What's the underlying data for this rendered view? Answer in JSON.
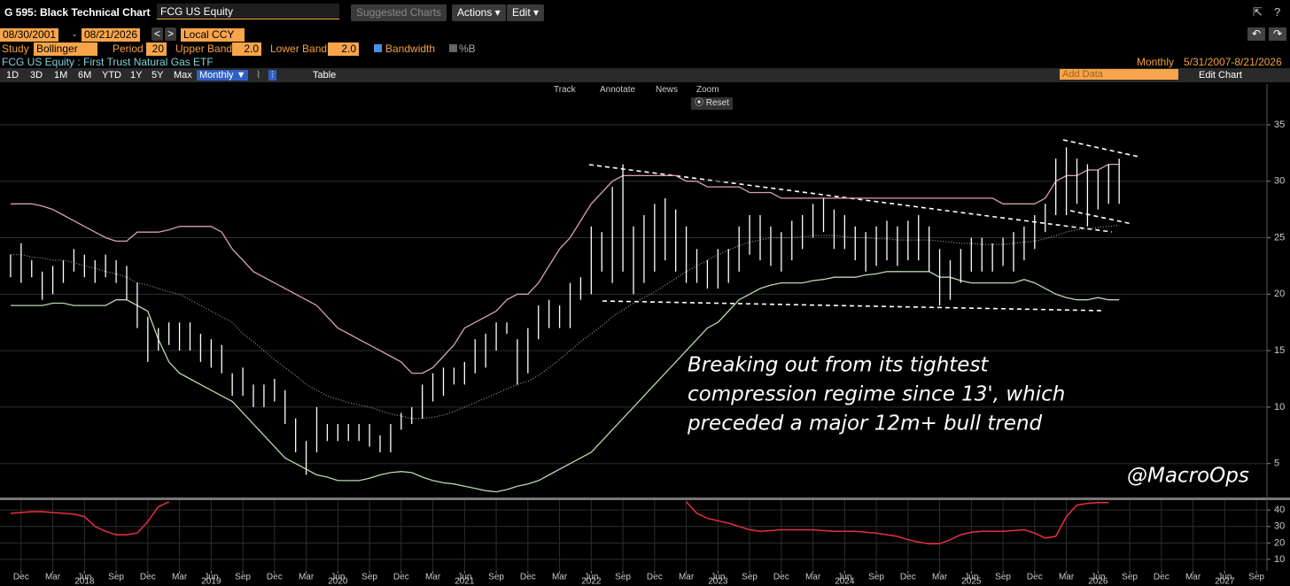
{
  "ui": {
    "window_title": "G 595: Black Technical Chart",
    "ticker_input": "FCG US Equity",
    "suggested": "Suggested Charts",
    "actions": "Actions ▾",
    "edit": "Edit ▾",
    "start_date": "08/30/2001",
    "dash": "-",
    "end_date": "08/21/2026",
    "currency": "Local CCY",
    "study_label": "Study",
    "study": "Bollinger",
    "period_label": "Period",
    "period": "20",
    "upper_label": "Upper Band",
    "upper": "2.0",
    "lower_label": "Lower Band",
    "lower": "2.0",
    "bandwidth": "Bandwidth",
    "pctb": "%B",
    "security": "FCG US Equity : First Trust Natural Gas ETF",
    "frequency": "Monthly",
    "range": "5/31/2007-8/21/2026",
    "periods": [
      "1D",
      "3D",
      "1M",
      "6M",
      "YTD",
      "1Y",
      "5Y",
      "Max"
    ],
    "freq_button": "Monthly ▼",
    "table": "Table",
    "add_data": "Add Data",
    "edit_chart": "Edit Chart",
    "tools": [
      "Track",
      "Annotate",
      "News",
      "Zoom"
    ],
    "reset": "Reset"
  },
  "chart_data": {
    "type": "ohlc",
    "x": [
      "2017-11",
      "2017-12",
      "2018-01",
      "2018-02",
      "2018-03",
      "2018-04",
      "2018-05",
      "2018-06",
      "2018-07",
      "2018-08",
      "2018-09",
      "2018-10",
      "2018-11",
      "2018-12",
      "2019-01",
      "2019-02",
      "2019-03",
      "2019-04",
      "2019-05",
      "2019-06",
      "2019-07",
      "2019-08",
      "2019-09",
      "2019-10",
      "2019-11",
      "2019-12",
      "2020-01",
      "2020-02",
      "2020-03",
      "2020-04",
      "2020-05",
      "2020-06",
      "2020-07",
      "2020-08",
      "2020-09",
      "2020-10",
      "2020-11",
      "2020-12",
      "2021-01",
      "2021-02",
      "2021-03",
      "2021-04",
      "2021-05",
      "2021-06",
      "2021-07",
      "2021-08",
      "2021-09",
      "2021-10",
      "2021-11",
      "2021-12",
      "2022-01",
      "2022-02",
      "2022-03",
      "2022-04",
      "2022-05",
      "2022-06",
      "2022-07",
      "2022-08",
      "2022-09",
      "2022-10",
      "2022-11",
      "2022-12",
      "2023-01",
      "2023-02",
      "2023-03",
      "2023-04",
      "2023-05",
      "2023-06",
      "2023-07",
      "2023-08",
      "2023-09",
      "2023-10",
      "2023-11",
      "2023-12",
      "2024-01",
      "2024-02",
      "2024-03",
      "2024-04",
      "2024-05",
      "2024-06",
      "2024-07",
      "2024-08",
      "2024-09",
      "2024-10",
      "2024-11",
      "2024-12",
      "2025-01",
      "2025-02",
      "2025-03",
      "2025-04",
      "2025-05",
      "2025-06",
      "2025-07",
      "2025-08",
      "2025-09",
      "2025-10",
      "2025-11",
      "2025-12",
      "2026-01",
      "2026-02",
      "2026-03",
      "2026-04",
      "2026-05",
      "2026-06",
      "2026-07",
      "2026-08"
    ],
    "high": [
      23.5,
      24.5,
      23,
      22,
      22.5,
      23,
      24,
      23.5,
      23,
      23.5,
      23,
      22.5,
      21,
      18,
      17,
      17.5,
      17.5,
      17.5,
      16.5,
      16,
      15.5,
      13,
      13.5,
      12,
      12,
      12.5,
      11.5,
      9,
      7,
      10,
      8.5,
      8.5,
      8.5,
      8.5,
      8.5,
      7.5,
      8.5,
      9.5,
      10,
      12,
      13,
      13.5,
      13.5,
      14,
      16,
      16.5,
      17.5,
      17.5,
      16,
      17,
      19,
      19.5,
      19,
      21,
      21.5,
      26,
      25.5,
      29.5,
      31.5,
      26,
      27,
      28,
      28.5,
      27.5,
      26,
      24,
      23,
      24,
      24,
      26,
      27,
      27,
      26,
      25.5,
      26.5,
      27,
      28,
      28.5,
      27.5,
      27,
      26,
      25.5,
      26,
      26.5,
      26,
      26.5,
      27,
      26,
      24,
      23,
      24,
      25,
      25,
      24.5,
      25,
      25.5,
      26,
      27,
      28,
      32,
      33,
      32,
      31.5,
      31,
      31.5,
      32
    ],
    "low": [
      21.5,
      21,
      21.5,
      19.5,
      20,
      21,
      22,
      21.5,
      21,
      21.5,
      21,
      19.5,
      17,
      14,
      15,
      15.5,
      15,
      15,
      14,
      13.5,
      13,
      11,
      11,
      10,
      10,
      10.5,
      8.5,
      6,
      4,
      6,
      7,
      7,
      7,
      7,
      6.5,
      6,
      6,
      8,
      8.5,
      9,
      10.5,
      11,
      12,
      12,
      13,
      13.5,
      15,
      16.5,
      12,
      13,
      16,
      17,
      17,
      17,
      19.5,
      20,
      22,
      21,
      22,
      20,
      21,
      22,
      23,
      22,
      21,
      21,
      20.5,
      20.5,
      21,
      22,
      23.5,
      23,
      22.5,
      22,
      23,
      24,
      25,
      25.5,
      24,
      24,
      23,
      22,
      22.5,
      23,
      22.5,
      23,
      23,
      22,
      19,
      19.5,
      21,
      22,
      22,
      22,
      22.5,
      22,
      23,
      24,
      25.5,
      27,
      27,
      28,
      26,
      27.5,
      28,
      28
    ],
    "series": [
      {
        "color": "#d9a3aa",
        "style": "solid",
        "values": [
          28,
          28,
          28,
          27.8,
          27.5,
          27,
          26.5,
          26,
          25.5,
          25,
          24.7,
          24.7,
          25.5,
          25.5,
          25.5,
          25.7,
          26,
          26,
          26,
          26,
          25.5,
          24,
          23,
          22,
          21.5,
          21,
          20.5,
          20,
          19.5,
          19,
          18,
          17,
          16.5,
          16,
          15.5,
          15,
          14.5,
          14,
          13,
          13,
          13.5,
          14.5,
          15.5,
          17,
          17.5,
          18,
          18.5,
          19.5,
          20,
          20,
          21,
          22.5,
          24,
          25,
          26.5,
          28,
          29,
          30,
          30.5,
          30.5,
          30.5,
          30.5,
          30.5,
          30.5,
          30,
          30,
          29.5,
          29.5,
          29.5,
          29.5,
          29,
          29,
          29,
          28.5,
          28.5,
          28.5,
          28.5,
          28.5,
          28.5,
          28.5,
          28.5,
          28.5,
          28.5,
          28.5,
          28.5,
          28.5,
          28.5,
          28.5,
          28.5,
          28.5,
          28.5,
          28.5,
          28.5,
          28.5,
          28,
          28,
          28,
          28,
          28.5,
          30,
          30.5,
          30.5,
          31,
          31,
          31.5,
          31.5
        ]
      },
      {
        "color": "#9a9a9a",
        "style": "dotted",
        "values": [
          23.5,
          23.5,
          23.3,
          23.2,
          23,
          23,
          22.8,
          22.5,
          22.3,
          22,
          21.8,
          21.5,
          21,
          20.8,
          20.5,
          20.2,
          20,
          19.5,
          19,
          18.5,
          18,
          17.5,
          16.5,
          15.8,
          15,
          14.2,
          13.5,
          12.8,
          12,
          11.5,
          11,
          10.7,
          10.4,
          10.2,
          10,
          9.7,
          9.4,
          9.2,
          9,
          9,
          9.1,
          9.3,
          9.6,
          10,
          10.4,
          10.8,
          11.2,
          11.6,
          12,
          12.3,
          12.8,
          13.5,
          14.2,
          15,
          15.8,
          16.5,
          17.2,
          18,
          18.6,
          19.2,
          19.7,
          20.2,
          20.8,
          21.4,
          22,
          22.5,
          23,
          23.5,
          23.9,
          24.3,
          24.6,
          24.8,
          25,
          25,
          25,
          25.1,
          25.2,
          25.2,
          25.2,
          25.1,
          25,
          25,
          24.9,
          24.9,
          24.8,
          24.8,
          24.8,
          24.8,
          24.7,
          24.6,
          24.5,
          24.5,
          24.4,
          24.4,
          24.4,
          24.5,
          24.6,
          24.7,
          24.9,
          25.2,
          25.5,
          25.7,
          25.8,
          25.9,
          26,
          26.1
        ]
      },
      {
        "color": "#b9d8b0",
        "style": "solid",
        "values": [
          19,
          19,
          19,
          19,
          19.2,
          19.2,
          19,
          19,
          19,
          19,
          19.5,
          19.5,
          19,
          18.5,
          16,
          14,
          13,
          12.5,
          12,
          11.5,
          11,
          10.5,
          9.5,
          8.5,
          7.5,
          6.5,
          5.5,
          5,
          4.5,
          4,
          3.8,
          3.5,
          3.5,
          3.5,
          3.7,
          4,
          4.2,
          4.3,
          4.2,
          3.8,
          3.5,
          3.3,
          3.2,
          3,
          2.8,
          2.6,
          2.5,
          2.7,
          3,
          3.2,
          3.5,
          4,
          4.5,
          5,
          5.5,
          6,
          7,
          8,
          9,
          10,
          11,
          12,
          13,
          14,
          15,
          16,
          17,
          17.5,
          18.5,
          19.5,
          20,
          20.5,
          20.8,
          21,
          21,
          21,
          21.2,
          21.3,
          21.5,
          21.5,
          21.5,
          21.7,
          21.8,
          22,
          22,
          22,
          22,
          22,
          21.5,
          21.5,
          21.2,
          21,
          21,
          21,
          21,
          21,
          21.3,
          21,
          20.5,
          20,
          19.7,
          19.5,
          19.5,
          19.7,
          19.5,
          19.5
        ]
      }
    ],
    "bar_color": "#ffffff",
    "xlim": [
      "2017-10",
      "2027-10"
    ],
    "ylim": [
      2,
      38.6
    ],
    "yticks": [
      5,
      10,
      15,
      20,
      25,
      30,
      35
    ],
    "grid": true,
    "xticks": [
      {
        "value": "2017-12",
        "label": "Dec"
      },
      {
        "value": "2018-03",
        "label": "Mar"
      },
      {
        "value": "2018-06",
        "label": "Jun"
      },
      {
        "value": "2018-09",
        "label": "Sep"
      },
      {
        "value": "2018-12",
        "label": "Dec"
      },
      {
        "value": "2019-03",
        "label": "Mar"
      },
      {
        "value": "2019-06",
        "label": "Jun"
      },
      {
        "value": "2019-09",
        "label": "Sep"
      },
      {
        "value": "2019-12",
        "label": "Dec"
      },
      {
        "value": "2020-03",
        "label": "Mar"
      },
      {
        "value": "2020-06",
        "label": "Jun"
      },
      {
        "value": "2020-09",
        "label": "Sep"
      },
      {
        "value": "2020-12",
        "label": "Dec"
      },
      {
        "value": "2021-03",
        "label": "Mar"
      },
      {
        "value": "2021-06",
        "label": "Jun"
      },
      {
        "value": "2021-09",
        "label": "Sep"
      },
      {
        "value": "2021-12",
        "label": "Dec"
      },
      {
        "value": "2022-03",
        "label": "Mar"
      },
      {
        "value": "2022-06",
        "label": "Jun"
      },
      {
        "value": "2022-09",
        "label": "Sep"
      },
      {
        "value": "2022-12",
        "label": "Dec"
      },
      {
        "value": "2023-03",
        "label": "Mar"
      },
      {
        "value": "2023-06",
        "label": "Jun"
      },
      {
        "value": "2023-09",
        "label": "Sep"
      },
      {
        "value": "2023-12",
        "label": "Dec"
      },
      {
        "value": "2024-03",
        "label": "Mar"
      },
      {
        "value": "2024-06",
        "label": "Jun"
      },
      {
        "value": "2024-09",
        "label": "Sep"
      },
      {
        "value": "2024-12",
        "label": "Dec"
      },
      {
        "value": "2025-03",
        "label": "Mar"
      },
      {
        "value": "2025-06",
        "label": "Jun"
      },
      {
        "value": "2025-09",
        "label": "Sep"
      },
      {
        "value": "2025-12",
        "label": "Dec"
      },
      {
        "value": "2026-03",
        "label": "Mar"
      },
      {
        "value": "2026-06",
        "label": "Jun"
      },
      {
        "value": "2026-09",
        "label": "Sep"
      },
      {
        "value": "2026-12",
        "label": "Dec"
      },
      {
        "value": "2027-03",
        "label": "Mar"
      },
      {
        "value": "2027-06",
        "label": "Jun"
      },
      {
        "value": "2027-09",
        "label": "Sep"
      }
    ],
    "year_labels": [
      {
        "value": "2018-06",
        "label": "2018"
      },
      {
        "value": "2019-06",
        "label": "2019"
      },
      {
        "value": "2020-06",
        "label": "2020"
      },
      {
        "value": "2021-06",
        "label": "2021"
      },
      {
        "value": "2022-06",
        "label": "2022"
      },
      {
        "value": "2023-06",
        "label": "2023"
      },
      {
        "value": "2024-06",
        "label": "2024"
      },
      {
        "value": "2025-06",
        "label": "2025"
      },
      {
        "value": "2026-06",
        "label": "2026"
      },
      {
        "value": "2027-06",
        "label": "2027"
      }
    ],
    "annotation": [
      "Breaking out from its tightest",
      "compression regime since 13', which",
      "preceded a major 12m+ bull trend"
    ],
    "watermark": "@MacroOps",
    "lower_panel": {
      "type": "line",
      "ylim": [
        3,
        46
      ],
      "yticks": [
        10,
        20,
        30,
        40
      ],
      "grid": true,
      "series": [
        {
          "color": "#e8303c",
          "values": [
            38,
            38.5,
            39,
            39,
            38.5,
            38,
            37.5,
            36,
            30,
            27,
            25,
            25,
            26,
            33,
            42,
            45,
            null,
            null,
            null,
            null,
            null,
            null,
            null,
            null,
            null,
            null,
            null,
            null,
            null,
            null,
            null,
            null,
            null,
            null,
            null,
            null,
            null,
            null,
            null,
            null,
            null,
            null,
            null,
            null,
            null,
            null,
            null,
            null,
            null,
            null,
            null,
            null,
            null,
            null,
            null,
            null,
            null,
            null,
            null,
            null,
            null,
            null,
            null,
            null,
            45,
            38,
            35,
            33.5,
            32,
            30,
            28,
            27,
            27.5,
            28,
            28,
            28,
            28,
            27.5,
            27,
            27,
            27,
            26.5,
            26,
            25,
            24,
            22,
            20.5,
            19.5,
            19.5,
            22,
            25,
            26.5,
            27,
            27,
            27,
            27.5,
            28,
            26,
            23,
            24,
            36,
            43,
            44,
            44.5,
            44.5,
            null
          ]
        }
      ]
    }
  }
}
